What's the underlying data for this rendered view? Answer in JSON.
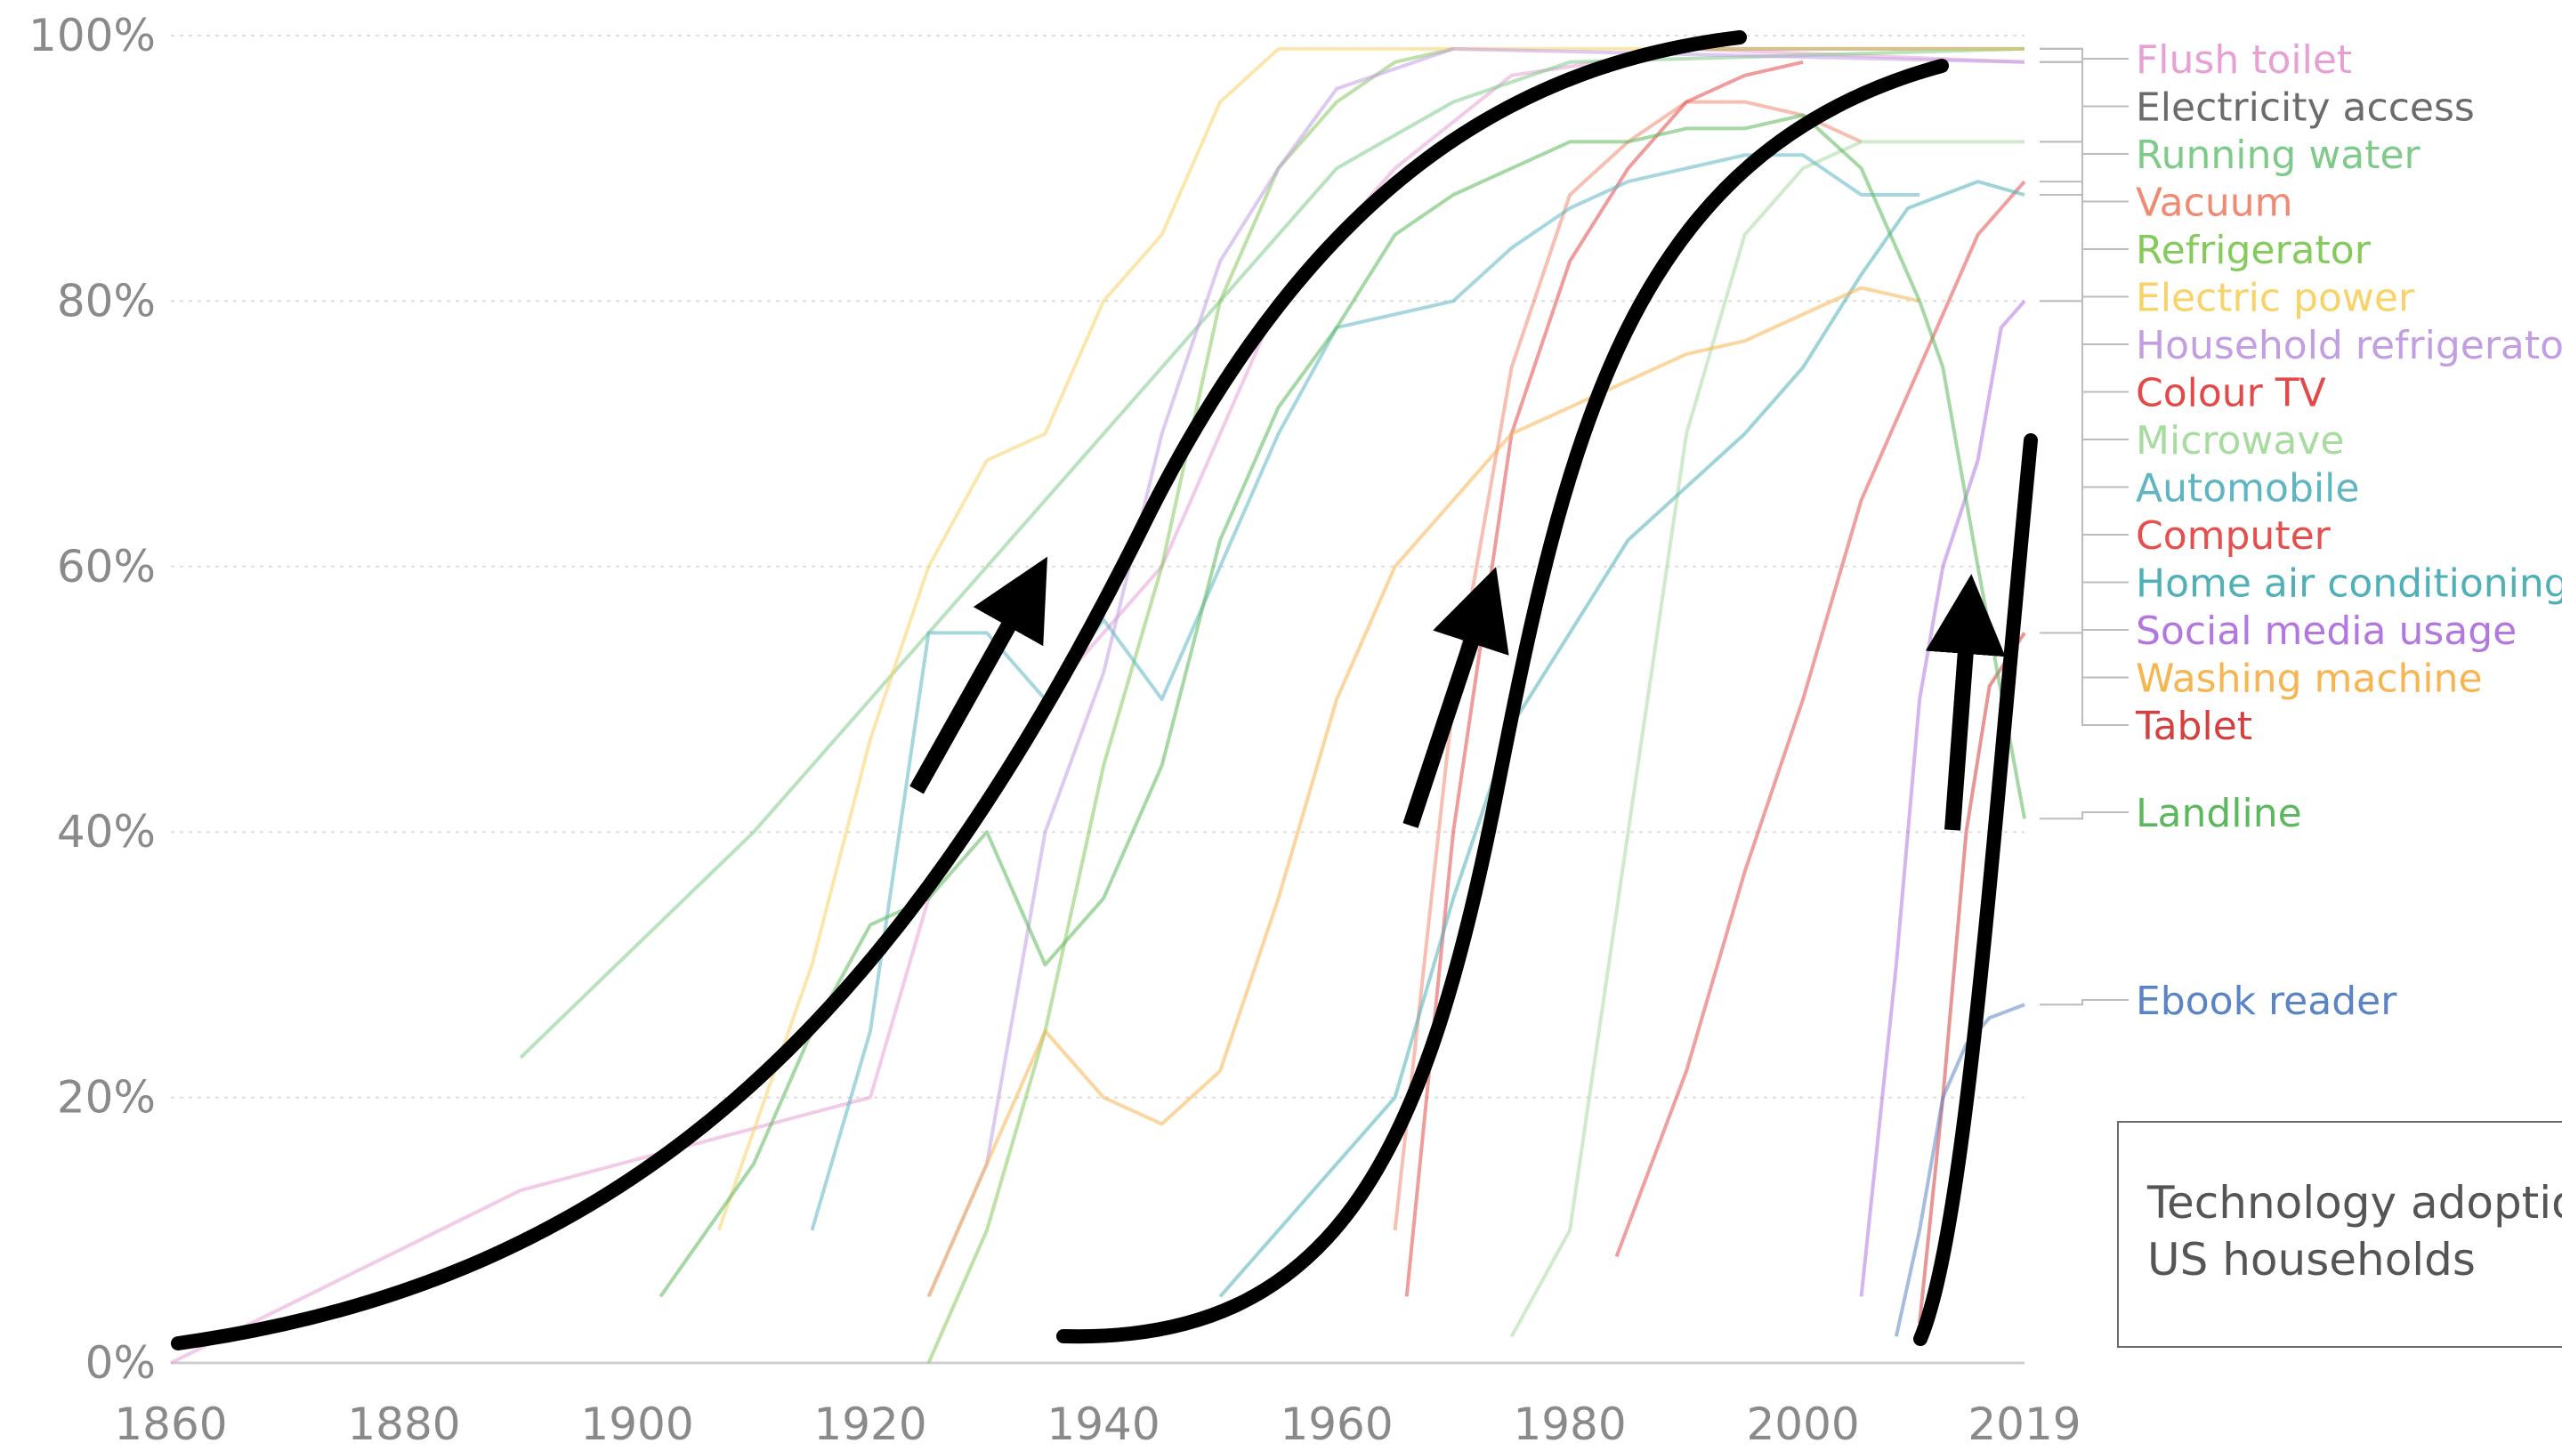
{
  "chart_data": {
    "type": "line",
    "x_ticks": [
      "1860",
      "1880",
      "1900",
      "1920",
      "1940",
      "1960",
      "1980",
      "2000",
      "2019"
    ],
    "y_ticks": [
      "0%",
      "20%",
      "40%",
      "60%",
      "80%",
      "100%"
    ],
    "xlim": [
      1860,
      2019
    ],
    "ylim": [
      0,
      100
    ],
    "grid": "horizontal dotted",
    "legend_position": "right",
    "series": [
      {
        "name": "Flush toilet",
        "color": "#e6a0d4",
        "values": [
          [
            1860,
            0
          ],
          [
            1890,
            13
          ],
          [
            1920,
            20
          ],
          [
            1925,
            35
          ],
          [
            1935,
            50
          ],
          [
            1945,
            60
          ],
          [
            1955,
            80
          ],
          [
            1965,
            90
          ],
          [
            1975,
            97
          ],
          [
            1990,
            99
          ],
          [
            2019,
            98
          ]
        ]
      },
      {
        "name": "Electricity access",
        "color": "#6b6b6b",
        "values": [
          [
            1990,
            99
          ],
          [
            2019,
            99
          ]
        ]
      },
      {
        "name": "Running water",
        "color": "#7fca8b",
        "values": [
          [
            1890,
            23
          ],
          [
            1910,
            40
          ],
          [
            1930,
            60
          ],
          [
            1940,
            70
          ],
          [
            1950,
            80
          ],
          [
            1960,
            90
          ],
          [
            1970,
            95
          ],
          [
            1980,
            98
          ],
          [
            2019,
            99
          ]
        ]
      },
      {
        "name": "Vacuum",
        "color": "#ef8a73",
        "values": [
          [
            1965,
            10
          ],
          [
            1970,
            50
          ],
          [
            1975,
            75
          ],
          [
            1980,
            88
          ],
          [
            1985,
            92
          ],
          [
            1990,
            95
          ],
          [
            1995,
            95
          ],
          [
            2000,
            94
          ],
          [
            2005,
            92
          ]
        ]
      },
      {
        "name": "Refrigerator",
        "color": "#86c95c",
        "values": [
          [
            1925,
            0
          ],
          [
            1930,
            10
          ],
          [
            1935,
            25
          ],
          [
            1940,
            45
          ],
          [
            1945,
            60
          ],
          [
            1950,
            80
          ],
          [
            1955,
            90
          ],
          [
            1960,
            95
          ],
          [
            1965,
            98
          ],
          [
            1970,
            99
          ]
        ]
      },
      {
        "name": "Electric power",
        "color": "#f7d36a",
        "values": [
          [
            1907,
            10
          ],
          [
            1915,
            30
          ],
          [
            1920,
            47
          ],
          [
            1925,
            60
          ],
          [
            1930,
            68
          ],
          [
            1935,
            70
          ],
          [
            1940,
            80
          ],
          [
            1945,
            85
          ],
          [
            1950,
            95
          ],
          [
            1955,
            99
          ],
          [
            2019,
            99
          ]
        ]
      },
      {
        "name": "Household refrigerator",
        "color": "#c29fe3",
        "values": [
          [
            1925,
            5
          ],
          [
            1930,
            15
          ],
          [
            1935,
            40
          ],
          [
            1940,
            52
          ],
          [
            1945,
            70
          ],
          [
            1950,
            83
          ],
          [
            1955,
            90
          ],
          [
            1960,
            96
          ],
          [
            1970,
            99
          ],
          [
            2019,
            98
          ]
        ]
      },
      {
        "name": "Colour TV",
        "color": "#e24a4a",
        "values": [
          [
            1966,
            5
          ],
          [
            1970,
            40
          ],
          [
            1975,
            70
          ],
          [
            1980,
            83
          ],
          [
            1985,
            90
          ],
          [
            1990,
            95
          ],
          [
            1995,
            97
          ],
          [
            2000,
            98
          ]
        ]
      },
      {
        "name": "Microwave",
        "color": "#a8dba0",
        "values": [
          [
            1975,
            2
          ],
          [
            1980,
            10
          ],
          [
            1985,
            40
          ],
          [
            1990,
            70
          ],
          [
            1995,
            85
          ],
          [
            2000,
            90
          ],
          [
            2005,
            92
          ],
          [
            2019,
            92
          ]
        ]
      },
      {
        "name": "Automobile",
        "color": "#5fb6c2",
        "values": [
          [
            1915,
            10
          ],
          [
            1920,
            25
          ],
          [
            1925,
            55
          ],
          [
            1930,
            55
          ],
          [
            1935,
            50
          ],
          [
            1940,
            56
          ],
          [
            1945,
            50
          ],
          [
            1950,
            60
          ],
          [
            1955,
            70
          ],
          [
            1960,
            78
          ],
          [
            1965,
            79
          ],
          [
            1970,
            80
          ],
          [
            1975,
            84
          ],
          [
            1980,
            87
          ],
          [
            1985,
            89
          ],
          [
            1990,
            90
          ],
          [
            1995,
            91
          ],
          [
            2000,
            91
          ],
          [
            2005,
            88
          ],
          [
            2010,
            88
          ]
        ]
      },
      {
        "name": "Computer",
        "color": "#e35050",
        "values": [
          [
            1984,
            8
          ],
          [
            1990,
            22
          ],
          [
            1995,
            37
          ],
          [
            2000,
            50
          ],
          [
            2005,
            65
          ],
          [
            2010,
            75
          ],
          [
            2015,
            85
          ],
          [
            2019,
            89
          ]
        ]
      },
      {
        "name": "Home air conditioning",
        "color": "#4fb0b8",
        "values": [
          [
            1950,
            5
          ],
          [
            1955,
            10
          ],
          [
            1960,
            15
          ],
          [
            1965,
            20
          ],
          [
            1970,
            35
          ],
          [
            1975,
            48
          ],
          [
            1980,
            55
          ],
          [
            1985,
            62
          ],
          [
            1990,
            66
          ],
          [
            1995,
            70
          ],
          [
            2000,
            75
          ],
          [
            2005,
            82
          ],
          [
            2009,
            87
          ],
          [
            2015,
            89
          ],
          [
            2019,
            88
          ]
        ]
      },
      {
        "name": "Social media usage",
        "color": "#b377e0",
        "values": [
          [
            2005,
            5
          ],
          [
            2008,
            30
          ],
          [
            2010,
            50
          ],
          [
            2012,
            60
          ],
          [
            2015,
            68
          ],
          [
            2017,
            78
          ],
          [
            2019,
            80
          ]
        ]
      },
      {
        "name": "Washing machine",
        "color": "#f7b552",
        "values": [
          [
            1925,
            5
          ],
          [
            1930,
            15
          ],
          [
            1935,
            25
          ],
          [
            1940,
            20
          ],
          [
            1945,
            18
          ],
          [
            1950,
            22
          ],
          [
            1955,
            35
          ],
          [
            1960,
            50
          ],
          [
            1965,
            60
          ],
          [
            1970,
            65
          ],
          [
            1975,
            70
          ],
          [
            1980,
            72
          ],
          [
            1985,
            74
          ],
          [
            1990,
            76
          ],
          [
            1995,
            77
          ],
          [
            2000,
            79
          ],
          [
            2005,
            81
          ],
          [
            2010,
            80
          ]
        ]
      },
      {
        "name": "Tablet",
        "color": "#d43f3f",
        "values": [
          [
            2010,
            3
          ],
          [
            2012,
            20
          ],
          [
            2014,
            40
          ],
          [
            2016,
            51
          ],
          [
            2019,
            55
          ]
        ]
      },
      {
        "name": "Landline",
        "color": "#5cb85c",
        "values": [
          [
            1902,
            5
          ],
          [
            1910,
            15
          ],
          [
            1915,
            25
          ],
          [
            1920,
            33
          ],
          [
            1925,
            35
          ],
          [
            1930,
            40
          ],
          [
            1935,
            30
          ],
          [
            1940,
            35
          ],
          [
            1945,
            45
          ],
          [
            1950,
            62
          ],
          [
            1955,
            72
          ],
          [
            1960,
            78
          ],
          [
            1965,
            85
          ],
          [
            1970,
            88
          ],
          [
            1975,
            90
          ],
          [
            1980,
            92
          ],
          [
            1985,
            92
          ],
          [
            1990,
            93
          ],
          [
            1995,
            93
          ],
          [
            2000,
            94
          ],
          [
            2005,
            90
          ],
          [
            2010,
            80
          ],
          [
            2012,
            75
          ],
          [
            2015,
            60
          ],
          [
            2019,
            41
          ]
        ]
      },
      {
        "name": "Ebook reader",
        "color": "#5b84c4",
        "values": [
          [
            2008,
            2
          ],
          [
            2010,
            10
          ],
          [
            2012,
            20
          ],
          [
            2014,
            24
          ],
          [
            2016,
            26
          ],
          [
            2019,
            27
          ]
        ]
      }
    ],
    "annotations": [
      "Technology adoption in US households"
    ]
  },
  "labels": {
    "legend": [
      "Flush toilet",
      "Electricity access",
      "Running water",
      "Vacuum",
      "Refrigerator",
      "Electric power",
      "Household refrigerator",
      "Colour TV",
      "Microwave",
      "Automobile",
      "Computer",
      "Home air conditioning",
      "Social media usage",
      "Washing machine",
      "Tablet",
      "Landline",
      "Ebook reader"
    ],
    "note_line1": "Technology adoption in",
    "note_line2": "US households"
  }
}
